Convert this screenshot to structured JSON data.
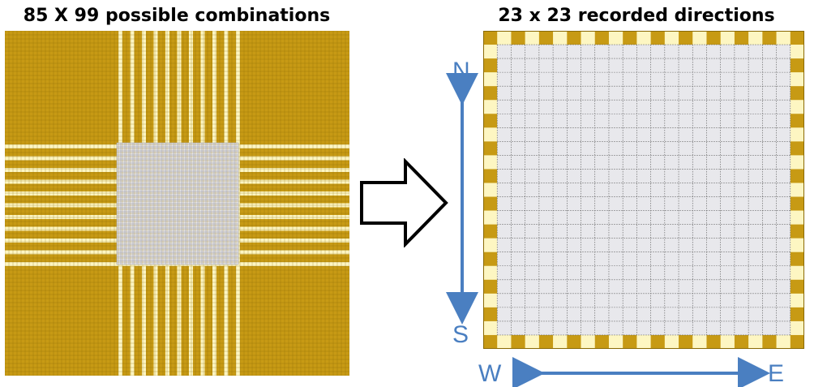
{
  "left_panel": {
    "title": "85 X 99 possible combinations"
  },
  "right_panel": {
    "title": "23 x 23 recorded directions",
    "labels": {
      "north": "N",
      "south": "S",
      "west": "W",
      "east": "E"
    }
  },
  "colors": {
    "gold": "#c79a14",
    "cream": "#fdf6c2",
    "light_grey": "#e8e8ec",
    "grid_line_dark": "#8a6a05",
    "grid_line_light": "#9a9aa2",
    "arrow_blue": "#4a7fc1",
    "outline_arrow": "#000000"
  },
  "icons": {
    "transform_arrow": "right-arrow-outline-icon",
    "north_south": "double-arrow-vertical-icon",
    "west_east": "double-arrow-horizontal-icon"
  }
}
